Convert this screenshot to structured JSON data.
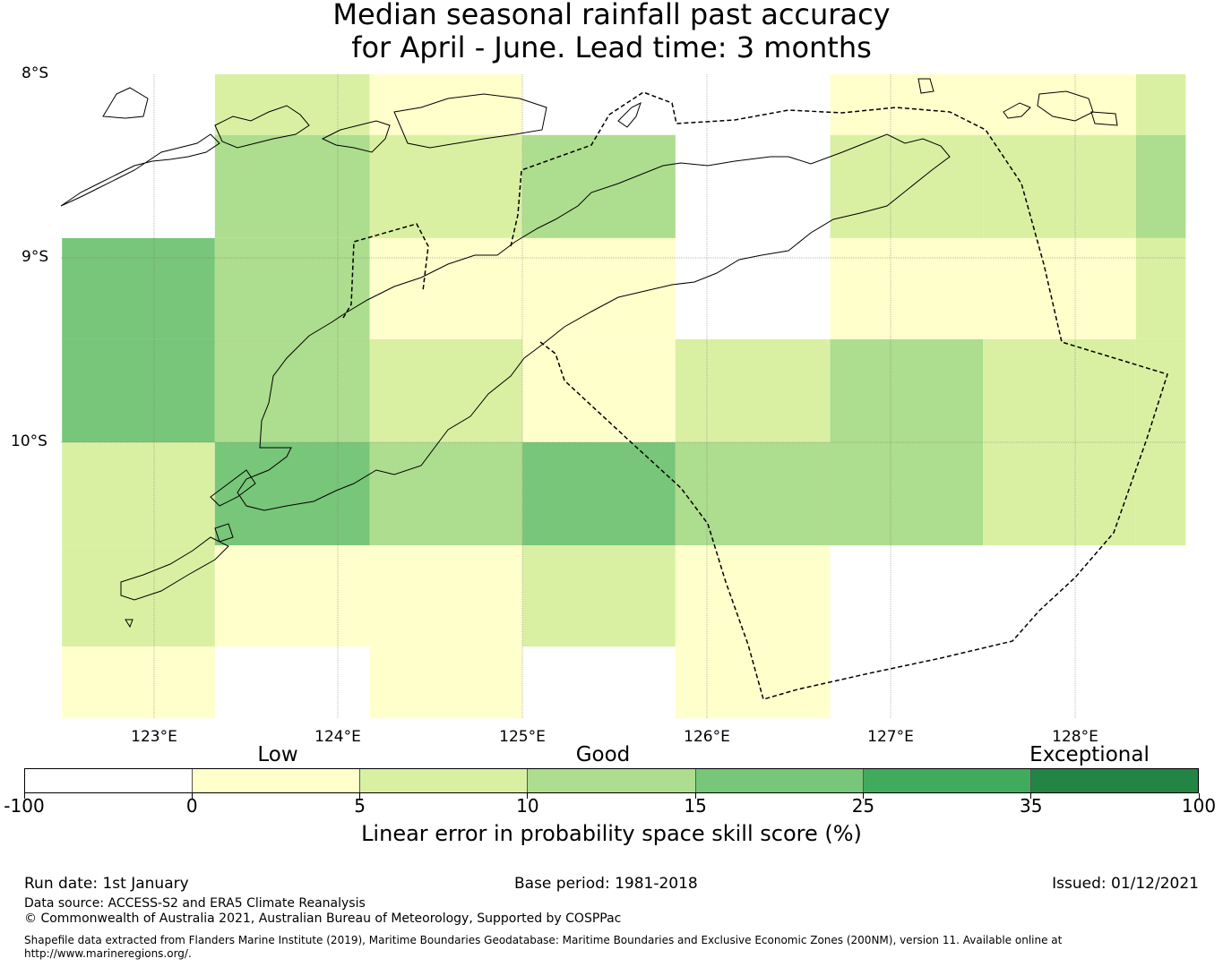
{
  "title": {
    "line1": "Median seasonal rainfall past accuracy",
    "line2": "for April - June. Lead time: 3 months"
  },
  "map": {
    "lat_labels": [
      "8°S",
      "9°S",
      "10°S"
    ],
    "lon_labels": [
      "123°E",
      "124°E",
      "125°E",
      "126°E",
      "127°E",
      "128°E"
    ],
    "grid_columns_lon": [
      122.5,
      123.33,
      124.17,
      125.0,
      125.83,
      126.67,
      127.5,
      128.33,
      128.6
    ],
    "grid_rows_lat": [
      -8.0,
      -8.33,
      -8.89,
      -9.44,
      -10.0,
      -10.56,
      -11.11,
      -11.5
    ],
    "skill_category_grid": [
      [
        null,
        2,
        1,
        null,
        null,
        1,
        1,
        2
      ],
      [
        null,
        3,
        2,
        3,
        null,
        2,
        2,
        3
      ],
      [
        4,
        3,
        1,
        1,
        null,
        1,
        1,
        2
      ],
      [
        4,
        3,
        2,
        1,
        2,
        3,
        2,
        2
      ],
      [
        2,
        4,
        3,
        4,
        3,
        3,
        2,
        2
      ],
      [
        2,
        1,
        1,
        2,
        1,
        null,
        null,
        null
      ],
      [
        1,
        null,
        1,
        null,
        1,
        null,
        null,
        null
      ]
    ]
  },
  "colorbar": {
    "category_labels": [
      "Low",
      "Good",
      "Exceptional"
    ],
    "tick_labels": [
      "-100",
      "0",
      "5",
      "10",
      "15",
      "25",
      "35",
      "100"
    ],
    "colors": [
      "#ffffff",
      "#ffffcc",
      "#d9f0a3",
      "#addd8e",
      "#78c679",
      "#41ab5d",
      "#238443"
    ],
    "axis_label": "Linear error in probability space skill score (%)"
  },
  "footer": {
    "run_date": "Run date: 1st January",
    "base_period": "Base period: 1981-2018",
    "issued": "Issued: 01/12/2021",
    "data_source": "Data source: ACCESS-S2 and ERA5 Climate Reanalysis",
    "copyright": "© Commonwealth of Australia 2021, Australian Bureau of Meteorology, Supported by COSPPac",
    "shapefile_line1": "Shapefile data extracted from Flanders Marine Institute (2019), Maritime Boundaries Geodatabase: Maritime Boundaries and Exclusive Economic Zones (200NM), version 11. Available online at",
    "shapefile_line2": "http://www.marineregions.org/."
  }
}
